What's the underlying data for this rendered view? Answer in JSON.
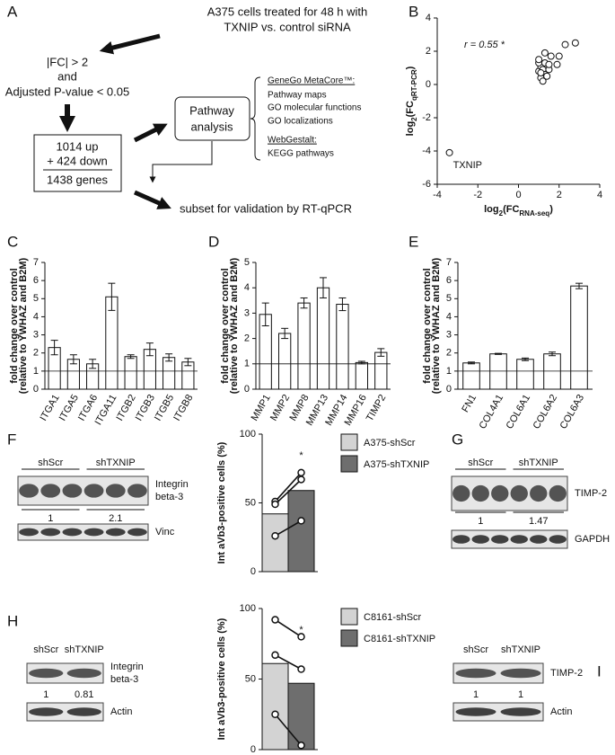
{
  "panel_labels": [
    "A",
    "B",
    "C",
    "D",
    "E",
    "F",
    "G",
    "H",
    "I"
  ],
  "flowchart": {
    "treatment": [
      "A375 cells treated for 48 h with",
      "TXNIP vs. control siRNA"
    ],
    "filter": [
      "|FC| > 2",
      "and",
      "Adjusted P-value < 0.05"
    ],
    "genes": [
      "1014 up",
      "+ 424 down",
      "1438 genes"
    ],
    "pathway_box": [
      "Pathway",
      "analysis"
    ],
    "tools": [
      "GeneGo MetaCore™:",
      "Pathway maps",
      "GO molecular functions",
      "GO localizations",
      "WebGestalt:",
      "KEGG pathways"
    ],
    "validation": "subset for validation by RT-qPCR"
  },
  "chart_data": [
    {
      "type": "scatter",
      "x_label": [
        "log",
        "2",
        "(FC",
        "RNA-seq",
        ")"
      ],
      "y_label": [
        "log",
        "2",
        "(FC",
        "qRT-PCR",
        ")"
      ],
      "annotation": "r = 0.55 *",
      "point_label": "TXNIP",
      "x": [
        -3.4,
        1.0,
        1.1,
        1.0,
        1.2,
        1.3,
        1.1,
        1.2,
        1.4,
        1.5,
        1.3,
        1.5,
        1.6,
        1.3,
        1.9,
        2.0,
        2.3,
        2.8,
        1.0,
        1.1
      ],
      "y": [
        -4.1,
        0.8,
        1.1,
        1.3,
        0.9,
        0.6,
        0.4,
        0.2,
        0.5,
        0.9,
        1.3,
        1.2,
        1.7,
        1.9,
        1.2,
        1.7,
        2.4,
        2.5,
        1.5,
        0.7
      ],
      "xlim": [
        -4,
        4
      ],
      "ylim": [
        -6,
        4
      ],
      "xticks": [
        -4,
        -2,
        0,
        2,
        4
      ],
      "yticks": [
        -6,
        -4,
        -2,
        0,
        2,
        4
      ]
    },
    {
      "type": "bar",
      "y_label": [
        "fold change over control",
        "(relative to YWHAZ and B2M)"
      ],
      "categories": [
        "ITGA1",
        "ITGA5",
        "ITGA6",
        "ITGA11",
        "ITGB2",
        "ITGB3",
        "ITGB5",
        "ITGB8"
      ],
      "values": [
        2.3,
        1.65,
        1.4,
        5.1,
        1.8,
        2.2,
        1.75,
        1.5
      ],
      "errors": [
        0.4,
        0.25,
        0.25,
        0.75,
        0.1,
        0.35,
        0.2,
        0.2
      ],
      "reference_line": 1,
      "ylim": [
        0,
        7
      ],
      "yticks": [
        0,
        1,
        2,
        3,
        4,
        5,
        6,
        7
      ]
    },
    {
      "type": "bar",
      "y_label": [
        "fold change over control",
        "(relative to YWHAZ and B2M)"
      ],
      "categories": [
        "MMP1",
        "MMP2",
        "MMP8",
        "MMP13",
        "MMP14",
        "MMP16",
        "TIMP2"
      ],
      "values": [
        2.95,
        2.2,
        3.4,
        4.0,
        3.35,
        1.05,
        1.45
      ],
      "errors": [
        0.45,
        0.2,
        0.2,
        0.4,
        0.25,
        0.05,
        0.15
      ],
      "reference_line": 1,
      "ylim": [
        0,
        5
      ],
      "yticks": [
        0,
        1,
        2,
        3,
        4,
        5
      ]
    },
    {
      "type": "bar",
      "y_label": [
        "fold change over control",
        "(relative to YWHAZ and B2M)"
      ],
      "categories": [
        "FN1",
        "COL4A1",
        "COL6A1",
        "COL6A2",
        "COL6A3"
      ],
      "values": [
        1.45,
        1.95,
        1.65,
        1.95,
        5.7
      ],
      "errors": [
        0.05,
        0.03,
        0.07,
        0.1,
        0.15
      ],
      "reference_line": 1,
      "ylim": [
        0,
        7
      ],
      "yticks": [
        0,
        1,
        2,
        3,
        4,
        5,
        6,
        7
      ]
    },
    {
      "type": "paired_bar",
      "y_label": "Int aVb3-positive cells (%)",
      "annotation": "*",
      "series": [
        {
          "name": "A375-shScr",
          "color": "#d3d3d3",
          "mean": 42,
          "values": [
            51,
            49,
            26
          ]
        },
        {
          "name": "A375-shTXNIP",
          "color": "#6e6e6e",
          "mean": 59,
          "values": [
            72,
            67,
            37
          ]
        }
      ],
      "ylim": [
        0,
        100
      ],
      "yticks": [
        0,
        50,
        100
      ]
    },
    {
      "type": "paired_bar",
      "y_label": "Int aVb3-positive cells (%)",
      "annotation": "*",
      "series": [
        {
          "name": "C8161-shScr",
          "color": "#d3d3d3",
          "mean": 61,
          "values": [
            92,
            67,
            25
          ]
        },
        {
          "name": "C8161-shTXNIP",
          "color": "#6e6e6e",
          "mean": 47,
          "values": [
            80,
            57,
            3
          ]
        }
      ],
      "ylim": [
        0,
        100
      ],
      "yticks": [
        0,
        50,
        100
      ]
    }
  ],
  "blots": [
    {
      "groups": [
        "shScr",
        "shTXNIP"
      ],
      "target": [
        "Integrin",
        "beta-3"
      ],
      "quantification": [
        1,
        2.1
      ],
      "loading": "Vinc"
    },
    {
      "groups": [
        "shScr",
        "shTXNIP"
      ],
      "target": [
        "TIMP-2"
      ],
      "quantification": [
        1,
        1.47
      ],
      "loading": "GAPDH"
    },
    {
      "groups": [
        "shScr",
        "shTXNIP"
      ],
      "target": [
        "Integrin",
        "beta-3"
      ],
      "quantification": [
        1,
        0.81
      ],
      "loading": "Actin"
    },
    {
      "groups": [
        "shScr",
        "shTXNIP"
      ],
      "target": [
        "TIMP-2"
      ],
      "quantification": [
        1,
        1
      ],
      "loading": "Actin"
    }
  ]
}
